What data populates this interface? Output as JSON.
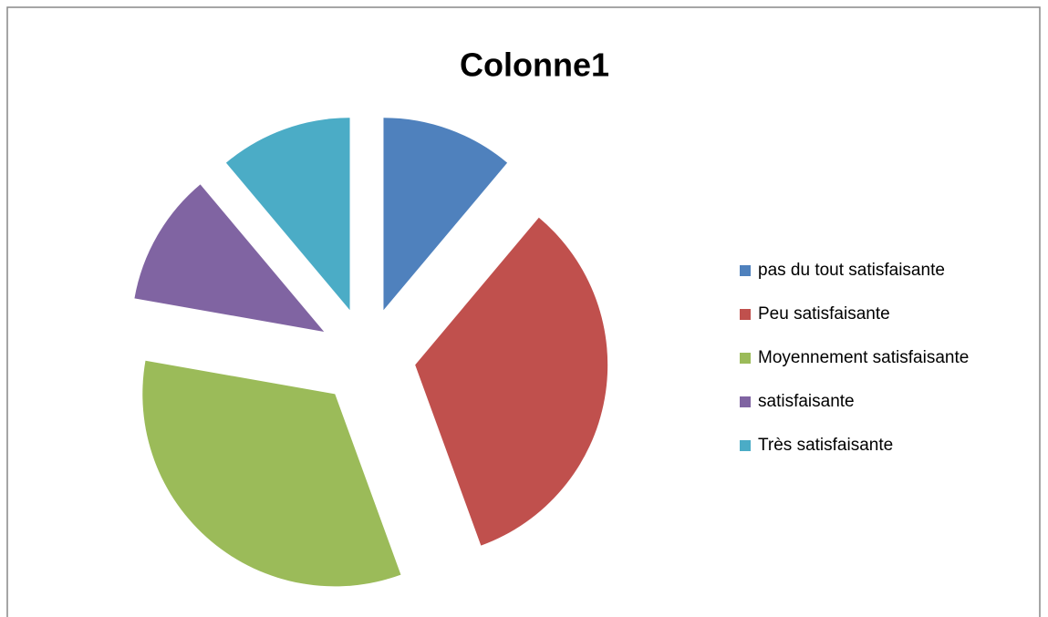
{
  "chart_data": {
    "type": "pie",
    "title": "Colonne1",
    "categories": [
      "pas du tout satisfaisante",
      "Peu satisfaisante",
      "Moyennement satisfaisante",
      "satisfaisante",
      "Très satisfaisante"
    ],
    "values": [
      1,
      3,
      3,
      1,
      1
    ],
    "colors": [
      "#4f81bd",
      "#c0504d",
      "#9bbb59",
      "#8064a2",
      "#4bacc6"
    ],
    "exploded": true,
    "legend": "right"
  }
}
